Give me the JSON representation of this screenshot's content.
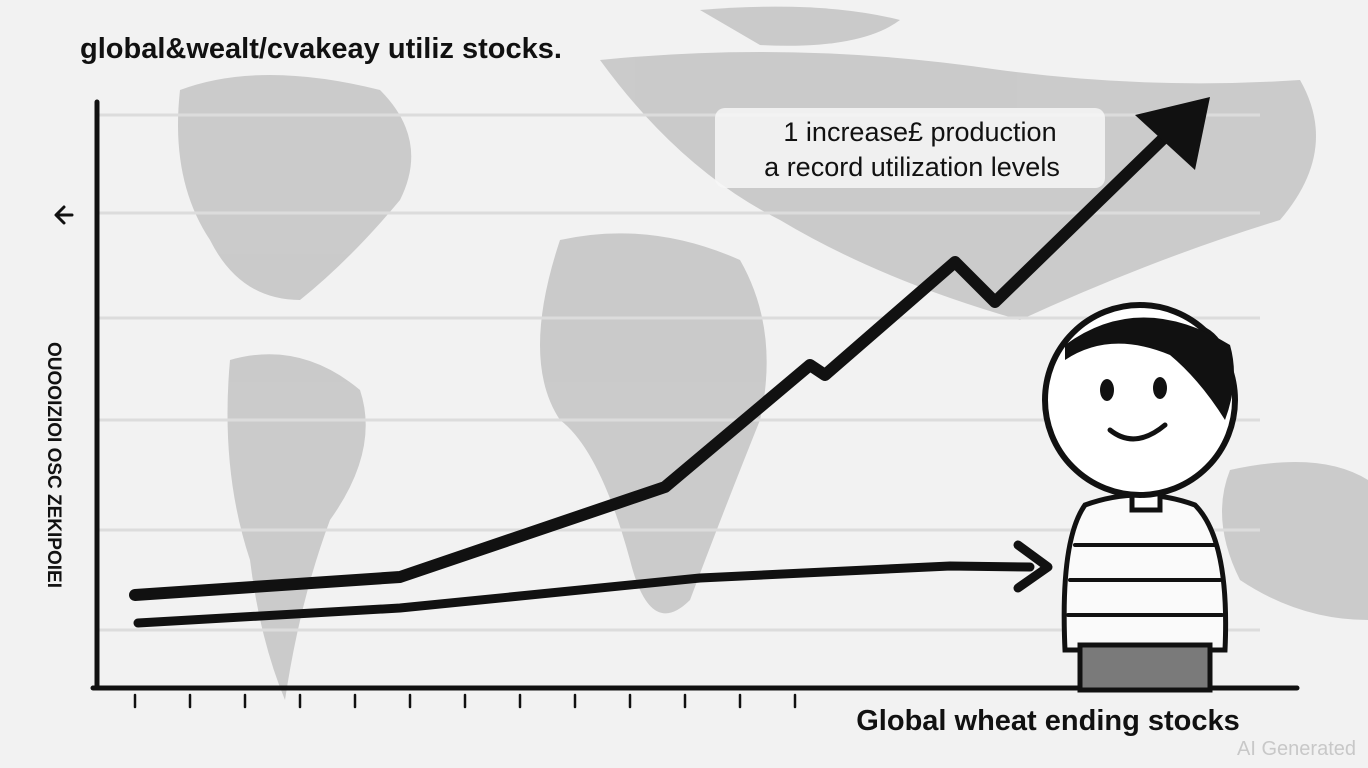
{
  "title": "global&wealt/cvakeay utiliz stocks.",
  "annotation": {
    "line1": "1 increase£ production",
    "line2": "a record utilization levels"
  },
  "y_axis_label": "OUOOIZIOI OSC ZEKIPOIEI",
  "x_axis_label": "Global wheat ending stocks",
  "watermark": "AI Generated"
}
